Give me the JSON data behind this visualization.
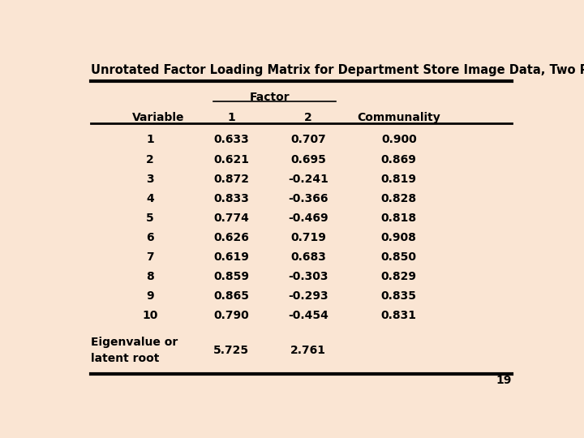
{
  "title": "Unrotated Factor Loading Matrix for Department Store Image Data, Two Principal Components",
  "background_color": "#FAE5D3",
  "variables": [
    "1",
    "2",
    "3",
    "4",
    "5",
    "6",
    "7",
    "8",
    "9",
    "10"
  ],
  "factor1": [
    0.633,
    0.621,
    0.872,
    0.833,
    0.774,
    0.626,
    0.619,
    0.859,
    0.865,
    0.79
  ],
  "factor2": [
    0.707,
    0.695,
    -0.241,
    -0.366,
    -0.469,
    0.719,
    0.683,
    -0.303,
    -0.293,
    -0.454
  ],
  "communality": [
    0.9,
    0.869,
    0.819,
    0.828,
    0.818,
    0.908,
    0.85,
    0.829,
    0.835,
    0.831
  ],
  "eigenvalue_label": [
    "Eigenvalue or",
    "latent root"
  ],
  "eigenvalue_f1": "5.725",
  "eigenvalue_f2": "2.761",
  "col_headers": [
    "Variable",
    "1",
    "2",
    "Communality"
  ],
  "factor_header": "Factor",
  "page_number": "19",
  "title_fontsize": 10.5,
  "header_fontsize": 10,
  "cell_fontsize": 10
}
